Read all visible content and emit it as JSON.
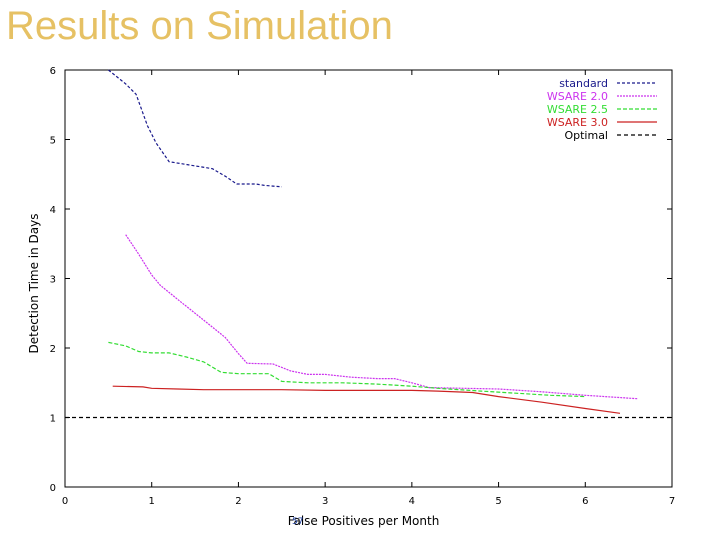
{
  "slide": {
    "title": "Results on Simulation",
    "page_number": "57"
  },
  "colors": {
    "title": "#e6c164",
    "standard": "#1a1a8c",
    "wsare20": "#cc33ee",
    "wsare25": "#33dd33",
    "wsare30": "#cc2222",
    "optimal": "#000000"
  },
  "chart_data": {
    "type": "line",
    "title": "",
    "xlabel": "False Positives per Month",
    "ylabel": "Detection Time in Days",
    "xlim": [
      0,
      7
    ],
    "ylim": [
      0,
      6
    ],
    "xticks": [
      "0",
      "1",
      "2",
      "3",
      "4",
      "5",
      "6",
      "7"
    ],
    "yticks": [
      "0",
      "1",
      "2",
      "3",
      "4",
      "5",
      "6"
    ],
    "grid": false,
    "legend_position": "top-right",
    "series": [
      {
        "name": "standard",
        "color": "#1a1a8c",
        "dash": "3,2",
        "x": [
          0.5,
          0.6,
          0.7,
          0.82,
          0.95,
          1.05,
          1.2,
          1.4,
          1.7,
          1.85,
          1.98,
          2.1,
          2.2,
          2.3,
          2.4,
          2.5
        ],
        "y": [
          6.0,
          5.9,
          5.8,
          5.65,
          5.2,
          4.95,
          4.68,
          4.64,
          4.58,
          4.47,
          4.36,
          4.36,
          4.36,
          4.34,
          4.33,
          4.32
        ]
      },
      {
        "name": "WSARE 2.0",
        "color": "#cc33ee",
        "dash": "2,1",
        "x": [
          0.7,
          0.85,
          1.0,
          1.1,
          1.3,
          1.5,
          1.7,
          1.85,
          2.0,
          2.1,
          2.4,
          2.6,
          2.8,
          3.0,
          3.3,
          3.6,
          3.8,
          4.0,
          4.2,
          4.6,
          5.0,
          5.5,
          6.0,
          6.6
        ],
        "y": [
          3.63,
          3.35,
          3.05,
          2.9,
          2.7,
          2.5,
          2.3,
          2.15,
          1.92,
          1.78,
          1.77,
          1.67,
          1.62,
          1.62,
          1.58,
          1.56,
          1.56,
          1.5,
          1.43,
          1.42,
          1.41,
          1.37,
          1.32,
          1.27
        ]
      },
      {
        "name": "WSARE 2.5",
        "color": "#33dd33",
        "dash": "4,2",
        "x": [
          0.5,
          0.7,
          0.85,
          1.0,
          1.2,
          1.4,
          1.6,
          1.8,
          2.0,
          2.2,
          2.35,
          2.5,
          2.8,
          3.2,
          3.6,
          4.0,
          4.3,
          4.8,
          5.2,
          5.6,
          6.0
        ],
        "y": [
          2.08,
          2.03,
          1.95,
          1.93,
          1.93,
          1.87,
          1.8,
          1.65,
          1.63,
          1.63,
          1.63,
          1.52,
          1.5,
          1.5,
          1.48,
          1.45,
          1.42,
          1.38,
          1.35,
          1.32,
          1.3
        ]
      },
      {
        "name": "WSARE 3.0",
        "color": "#cc2222",
        "dash": "",
        "x": [
          0.55,
          0.9,
          1.0,
          1.3,
          1.6,
          2.0,
          2.5,
          3.0,
          3.5,
          4.0,
          4.3,
          4.7,
          5.0,
          5.5,
          6.0,
          6.4
        ],
        "y": [
          1.45,
          1.44,
          1.42,
          1.41,
          1.4,
          1.4,
          1.4,
          1.39,
          1.39,
          1.39,
          1.38,
          1.36,
          1.3,
          1.22,
          1.13,
          1.06
        ]
      },
      {
        "name": "Optimal",
        "color": "#000000",
        "dash": "4,3",
        "x": [
          0,
          7
        ],
        "y": [
          1.0,
          1.0
        ]
      }
    ]
  }
}
